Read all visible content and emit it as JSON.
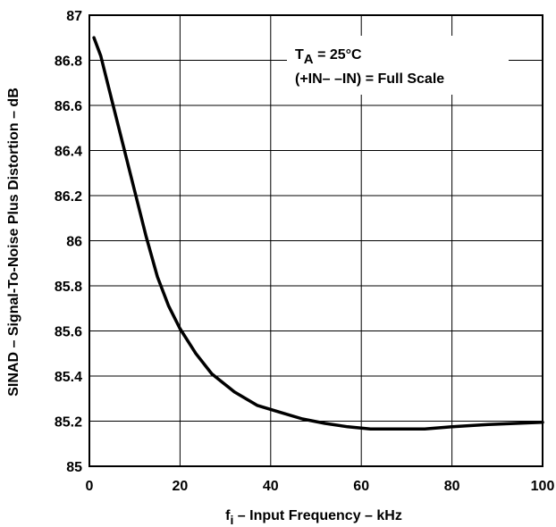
{
  "chart_data": {
    "type": "line",
    "title": "",
    "xlabel": {
      "symbol": "f",
      "subscript": "i",
      "text": " – Input Frequency – kHz"
    },
    "ylabel": "SINAD – Signal-To-Noise Plus Distortion – dB",
    "xlim": [
      0,
      100
    ],
    "ylim": [
      85,
      87
    ],
    "x_ticks": [
      "0",
      "20",
      "40",
      "60",
      "80",
      "100"
    ],
    "y_ticks": [
      "85",
      "85.2",
      "85.4",
      "85.6",
      "85.8",
      "86",
      "86.2",
      "86.4",
      "86.6",
      "86.8",
      "87"
    ],
    "x_tick_values": [
      0,
      20,
      40,
      60,
      80,
      100
    ],
    "y_tick_values": [
      85,
      85.2,
      85.4,
      85.6,
      85.8,
      86,
      86.2,
      86.4,
      86.6,
      86.8,
      87
    ],
    "grid": true,
    "annotations": {
      "line1_symbol": "T",
      "line1_subscript": "A",
      "line1_rest": " = 25°C",
      "line2": "(+IN– –IN) = Full Scale"
    },
    "series": [
      {
        "color": "#000000",
        "x": [
          1,
          2.5,
          5,
          7.5,
          10,
          12.5,
          15,
          17.5,
          20,
          23.5,
          27,
          32,
          37,
          42,
          47,
          52,
          57,
          62,
          67,
          74,
          80,
          88,
          94,
          100
        ],
        "y": [
          86.9,
          86.82,
          86.62,
          86.42,
          86.22,
          86.02,
          85.84,
          85.71,
          85.61,
          85.5,
          85.41,
          85.33,
          85.27,
          85.24,
          85.21,
          85.19,
          85.175,
          85.165,
          85.165,
          85.165,
          85.175,
          85.185,
          85.19,
          85.195
        ]
      }
    ]
  }
}
